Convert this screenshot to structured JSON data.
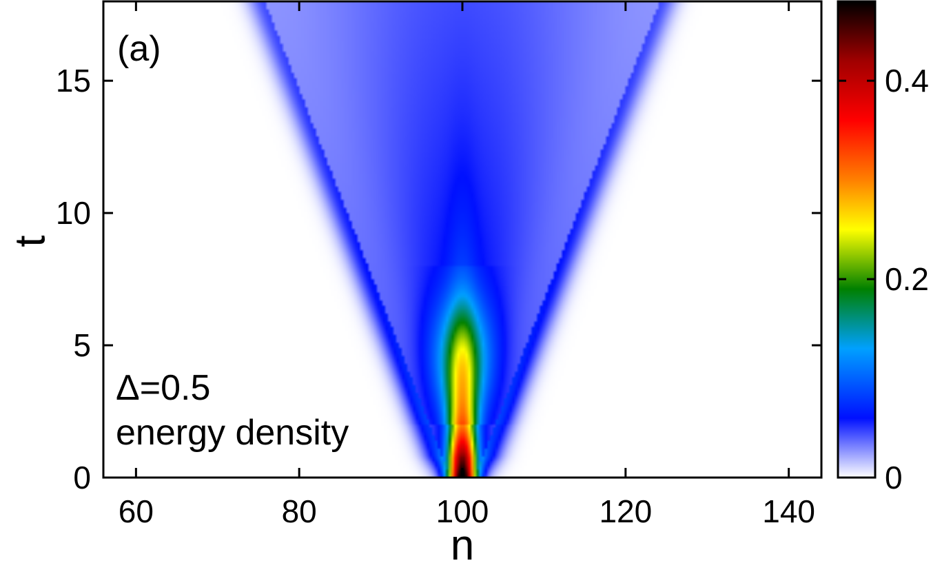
{
  "chart_data": {
    "type": "heatmap",
    "panel_label": "(a)",
    "annotations": [
      "Δ=0.5",
      "energy density"
    ],
    "xlabel": "n",
    "ylabel": "t",
    "xlim": [
      56,
      144
    ],
    "ylim": [
      0,
      18
    ],
    "xticks": [
      60,
      80,
      100,
      120,
      140
    ],
    "yticks": [
      0,
      5,
      10,
      15
    ],
    "colorbar": {
      "range": [
        0,
        0.48
      ],
      "ticks": [
        0,
        0.2,
        0.4
      ],
      "tick_labels": [
        "0",
        "0.2",
        "0.4"
      ],
      "colormap": [
        {
          "value": 0.0,
          "color": "#ffffff"
        },
        {
          "value": 0.06,
          "color": "#0010ff"
        },
        {
          "value": 0.13,
          "color": "#00a0ff"
        },
        {
          "value": 0.19,
          "color": "#008000"
        },
        {
          "value": 0.25,
          "color": "#ffff00"
        },
        {
          "value": 0.3,
          "color": "#ff8000"
        },
        {
          "value": 0.36,
          "color": "#ff0000"
        },
        {
          "value": 0.42,
          "color": "#a00000"
        },
        {
          "value": 0.48,
          "color": "#000000"
        }
      ]
    },
    "field": {
      "center_n": 100,
      "peak": 0.48,
      "spread_n_per_t": 1.2,
      "initial_width_n": 1.5
    }
  }
}
